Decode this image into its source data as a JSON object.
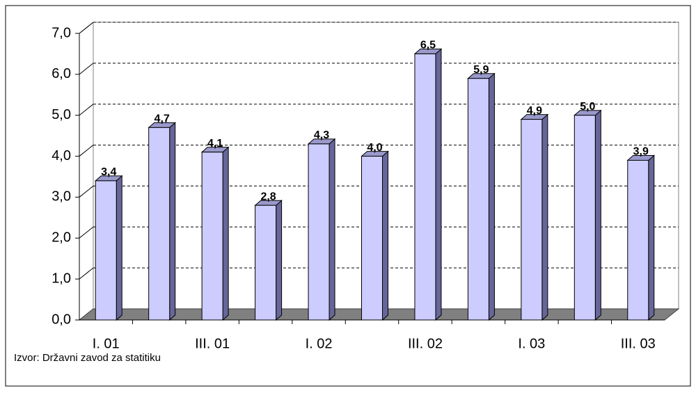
{
  "chart_data": {
    "type": "bar3d",
    "categories": [
      "I. 01",
      null,
      "III. 01",
      null,
      "I. 02",
      null,
      "III. 02",
      null,
      "I. 03",
      null,
      "III. 03"
    ],
    "values": [
      3.4,
      4.7,
      4.1,
      2.8,
      4.3,
      4.0,
      6.5,
      5.9,
      4.9,
      5.0,
      3.9
    ],
    "value_labels": [
      "3,4",
      "4,7",
      "4,1",
      "2,8",
      "4,3",
      "4,0",
      "6,5",
      "5,9",
      "4,9",
      "5,0",
      "3,9"
    ],
    "color": "#ccccff",
    "ylim": [
      0,
      7
    ],
    "yticks": [
      {
        "value": 0,
        "label": "0,0"
      },
      {
        "value": 1,
        "label": "1,0"
      },
      {
        "value": 2,
        "label": "2,0"
      },
      {
        "value": 3,
        "label": "3,0"
      },
      {
        "value": 4,
        "label": "4,0"
      },
      {
        "value": 5,
        "label": "5,0"
      },
      {
        "value": 6,
        "label": "6,0"
      },
      {
        "value": 7,
        "label": "7,0"
      }
    ],
    "grid": true,
    "source": "Izvor: Državni zavod za statitiku"
  }
}
